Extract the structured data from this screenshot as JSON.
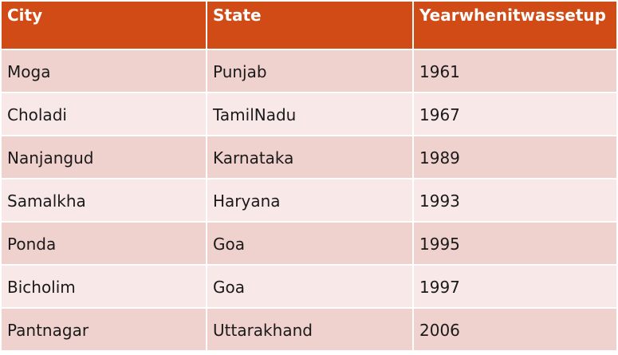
{
  "table": {
    "headers": [
      "City",
      "State",
      "Yearwhenitwassetup"
    ],
    "rows": [
      [
        "Moga",
        "Punjab",
        "1961"
      ],
      [
        "Choladi",
        "TamilNadu",
        "1967"
      ],
      [
        "Nanjangud",
        "Karnataka",
        "1989"
      ],
      [
        "Samalkha",
        "Haryana",
        "1993"
      ],
      [
        "Ponda",
        "Goa",
        "1995"
      ],
      [
        "Bicholim",
        "Goa",
        "1997"
      ],
      [
        "Pantnagar",
        "Uttarakhand",
        "2006"
      ]
    ]
  },
  "colors": {
    "header_bg": "#d14b16",
    "row_odd": "#efd1ce",
    "row_even": "#f8e9e8"
  }
}
